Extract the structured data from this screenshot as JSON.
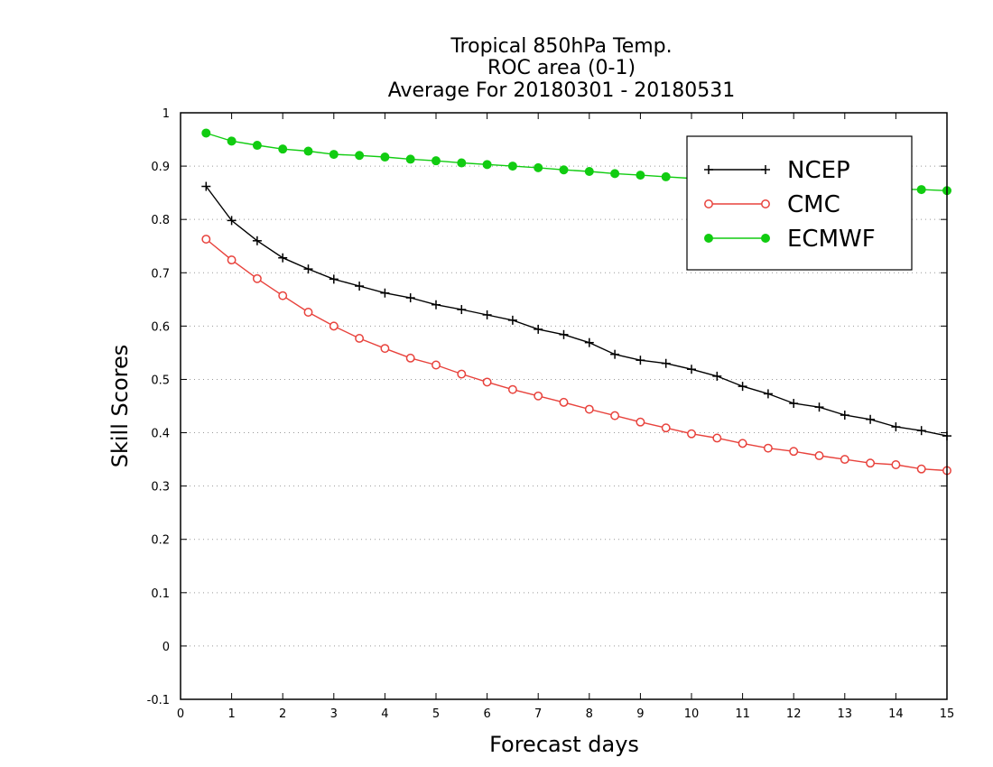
{
  "chart_data": {
    "type": "line",
    "title_lines": [
      "Tropical 850hPa Temp.",
      "ROC area (0-1)",
      "Average For 20180301 - 20180531"
    ],
    "xlabel": "Forecast days",
    "ylabel": "Skill Scores",
    "xlim": [
      0,
      15
    ],
    "ylim": [
      -0.1,
      1
    ],
    "x_ticks": [
      0,
      1,
      2,
      3,
      4,
      5,
      6,
      7,
      8,
      9,
      10,
      11,
      12,
      13,
      14,
      15
    ],
    "y_ticks": [
      -0.1,
      0,
      0.1,
      0.2,
      0.3,
      0.4,
      0.5,
      0.6,
      0.7,
      0.8,
      0.9,
      1
    ],
    "y_tick_labels": [
      "-0.1",
      "0",
      "0.1",
      "0.2",
      "0.3",
      "0.4",
      "0.5",
      "0.6",
      "0.7",
      "0.8",
      "0.9",
      "1"
    ],
    "grid": "horizontal dotted",
    "legend_position": "top-right",
    "x": [
      0.5,
      1,
      1.5,
      2,
      2.5,
      3,
      3.5,
      4,
      4.5,
      5,
      5.5,
      6,
      6.5,
      7,
      7.5,
      8,
      8.5,
      9,
      9.5,
      10,
      10.5,
      11,
      11.5,
      12,
      12.5,
      13,
      13.5,
      14,
      14.5,
      15
    ],
    "series": [
      {
        "name": "NCEP",
        "color": "#000000",
        "marker": "plus",
        "values": [
          0.862,
          0.798,
          0.76,
          0.728,
          0.707,
          0.688,
          0.675,
          0.662,
          0.653,
          0.64,
          0.631,
          0.621,
          0.611,
          0.594,
          0.584,
          0.569,
          0.547,
          0.536,
          0.53,
          0.519,
          0.506,
          0.487,
          0.473,
          0.455,
          0.448,
          0.433,
          0.425,
          0.411,
          0.404,
          0.394
        ]
      },
      {
        "name": "CMC",
        "color": "#e8423c",
        "marker": "open-circle",
        "values": [
          0.763,
          0.724,
          0.689,
          0.657,
          0.626,
          0.6,
          0.577,
          0.558,
          0.54,
          0.527,
          0.51,
          0.495,
          0.481,
          0.469,
          0.457,
          0.444,
          0.432,
          0.42,
          0.409,
          0.398,
          0.39,
          0.38,
          0.371,
          0.365,
          0.357,
          0.35,
          0.343,
          0.34,
          0.332,
          0.329
        ]
      },
      {
        "name": "ECMWF",
        "color": "#11cc11",
        "marker": "filled-circle",
        "values": [
          0.962,
          0.947,
          0.939,
          0.932,
          0.928,
          0.922,
          0.92,
          0.917,
          0.913,
          0.91,
          0.906,
          0.903,
          0.9,
          0.897,
          0.893,
          0.89,
          0.886,
          0.883,
          0.88,
          0.877,
          0.874,
          0.871,
          0.868,
          0.865,
          0.863,
          0.861,
          0.859,
          0.857,
          0.856,
          0.854
        ]
      }
    ]
  }
}
